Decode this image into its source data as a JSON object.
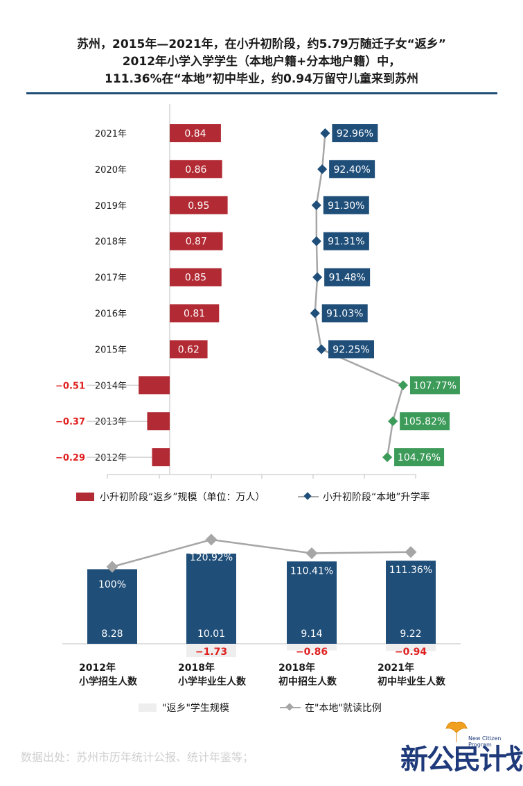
{
  "title": {
    "line1": "苏州，2015年—2021年，在小升初阶段，约5.79万随迁子女“返乡”",
    "line2": "2012年小学入学学生（本地户籍+分本地户籍）中，",
    "line3": "111.36%在“本地”初中毕业，约0.94万留守儿童来到苏州"
  },
  "colors": {
    "bar_positive": "#b22a33",
    "line_blue": "#1f4e79",
    "line_green": "#3d9b5a",
    "line_gray": "#a6a6a6",
    "negative_text": "#e02020",
    "bar_navy": "#1f4e79",
    "return_bar": "#eeeeee"
  },
  "legend_top": {
    "bar_label": "小升初阶段“返乡”规模（单位：万人）",
    "line_label": "小升初阶段“本地”升学率"
  },
  "legend_bottom": {
    "bar_label": "\"返乡\"学生规模",
    "line_label": "在\"本地\"就读比例"
  },
  "source": "数据出处：苏州市历年统计公报、统计年鉴等；",
  "logo": {
    "text": "新公民计划",
    "small_text": "New Citizen Program"
  },
  "chart_data": [
    {
      "type": "bar",
      "orientation": "horizontal",
      "categories": [
        "2021年",
        "2020年",
        "2019年",
        "2018年",
        "2017年",
        "2016年",
        "2015年",
        "2014年",
        "2013年",
        "2012年"
      ],
      "series": [
        {
          "name": "小升初阶段“返乡”规模（单位：万人）",
          "values": [
            0.84,
            0.86,
            0.95,
            0.87,
            0.85,
            0.81,
            0.62,
            -0.51,
            -0.37,
            -0.29
          ],
          "labels": [
            "0.84",
            "0.86",
            "0.95",
            "0.87",
            "0.85",
            "0.81",
            "0.62",
            "−0.51",
            "−0.37",
            "−0.29"
          ]
        },
        {
          "name": "小升初阶段“本地”升学率",
          "type": "line",
          "values": [
            92.96,
            92.4,
            91.3,
            91.31,
            91.48,
            91.03,
            92.25,
            107.77,
            105.82,
            104.76
          ],
          "labels": [
            "92.96%",
            "92.40%",
            "91.30%",
            "91.31%",
            "91.48%",
            "91.03%",
            "92.25%",
            "107.77%",
            "105.82%",
            "104.76%"
          ]
        }
      ],
      "legend": "bottom"
    },
    {
      "type": "bar",
      "categories": [
        [
          "2012年",
          "小学招生人数"
        ],
        [
          "2018年",
          "小学毕业生人数"
        ],
        [
          "2018年",
          "初中招生人数"
        ],
        [
          "2021年",
          "初中毕业生人数"
        ]
      ],
      "series": [
        {
          "name": "\"返乡\"学生规模",
          "values": [
            null,
            -1.73,
            -0.86,
            -0.94
          ],
          "labels": [
            "",
            "−1.73",
            "−0.86",
            "−0.94"
          ]
        },
        {
          "name": "在\"本地\"就读比例",
          "type": "line",
          "values": [
            100,
            120.92,
            110.41,
            111.36
          ],
          "labels": [
            "100%",
            "120.92%",
            "110.41%",
            "111.36%"
          ]
        }
      ],
      "bar_values": [
        8.28,
        10.01,
        9.14,
        9.22
      ],
      "bar_labels": [
        "8.28",
        "10.01",
        "9.14",
        "9.22"
      ],
      "legend": "bottom"
    }
  ]
}
